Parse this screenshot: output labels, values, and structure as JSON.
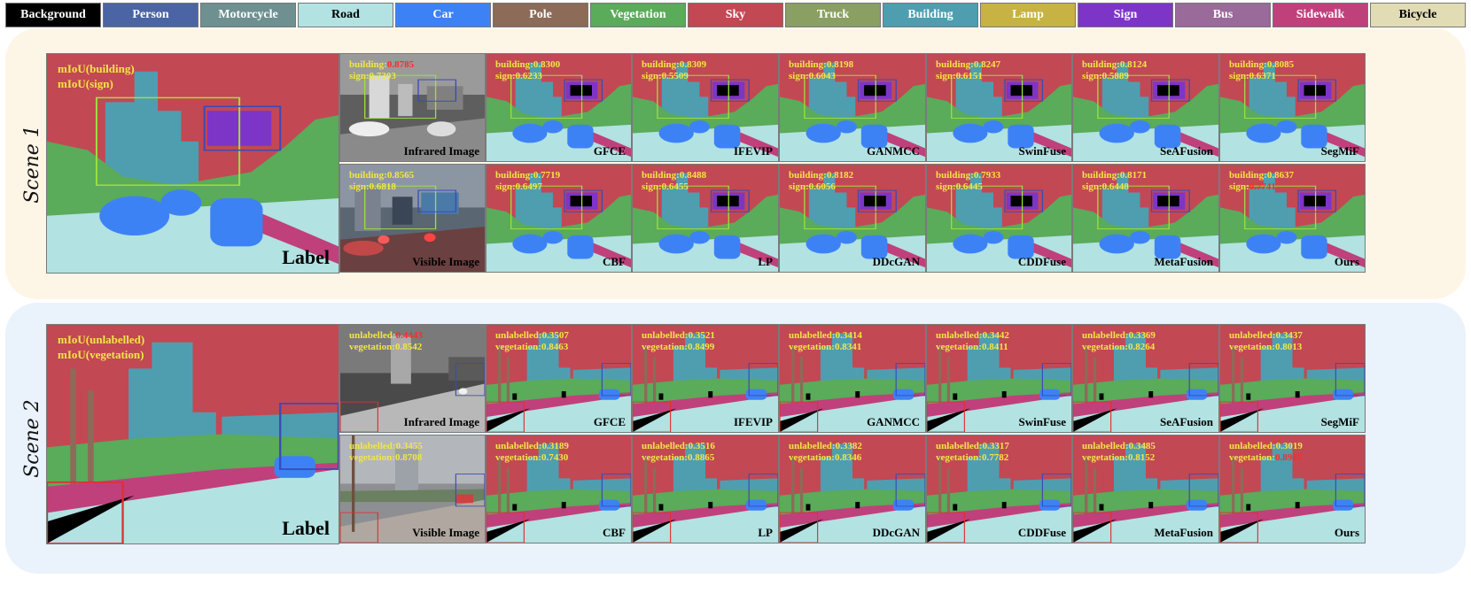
{
  "legend": [
    {
      "label": "Background",
      "color": "#000000"
    },
    {
      "label": "Person",
      "color": "#4a64a4"
    },
    {
      "label": "Motorcycle",
      "color": "#6e9090"
    },
    {
      "label": "Road",
      "color": "#b2e2e2"
    },
    {
      "label": "Car",
      "color": "#3d82f5"
    },
    {
      "label": "Pole",
      "color": "#8c6b58"
    },
    {
      "label": "Vegetation",
      "color": "#5aab5a"
    },
    {
      "label": "Sky",
      "color": "#c24854"
    },
    {
      "label": "Truck",
      "color": "#8aa062"
    },
    {
      "label": "Building",
      "color": "#4e9eb0"
    },
    {
      "label": "Lamp",
      "color": "#c7b244"
    },
    {
      "label": "Sign",
      "color": "#7d35c8"
    },
    {
      "label": "Bus",
      "color": "#9a6a9a"
    },
    {
      "label": "Sidewalk",
      "color": "#c0407c"
    },
    {
      "label": "Bicycle",
      "color": "#e2dcb4"
    }
  ],
  "scenes": [
    {
      "label": "Scene 1",
      "bg": "#fdf5e6",
      "label_panel": {
        "title": "Label",
        "metric_lines": [
          "mIoU(building)",
          "mIoU(sign)"
        ]
      },
      "infrared": {
        "title": "Infrared Image",
        "lines": [
          {
            "name": "building",
            "value": "0.8785",
            "best": true
          },
          {
            "name": "sign",
            "value": "0.7303",
            "best": false
          }
        ]
      },
      "visible": {
        "title": "Visible Image",
        "lines": [
          {
            "name": "building",
            "value": "0.8565",
            "best": false
          },
          {
            "name": "sign",
            "value": "0.6818",
            "best": false
          }
        ]
      },
      "methods_top": [
        {
          "name": "GFCE",
          "lines": [
            {
              "name": "building",
              "value": "0.8300"
            },
            {
              "name": "sign",
              "value": "0.6233"
            }
          ]
        },
        {
          "name": "IFEVIP",
          "lines": [
            {
              "name": "building",
              "value": "0.8309"
            },
            {
              "name": "sign",
              "value": "0.5509"
            }
          ]
        },
        {
          "name": "GANMCC",
          "lines": [
            {
              "name": "building",
              "value": "0.8198"
            },
            {
              "name": "sign",
              "value": "0.6043"
            }
          ]
        },
        {
          "name": "SwinFuse",
          "lines": [
            {
              "name": "building",
              "value": "0.8247"
            },
            {
              "name": "sign",
              "value": "0.6151"
            }
          ]
        },
        {
          "name": "SeAFusion",
          "lines": [
            {
              "name": "building",
              "value": "0.8124"
            },
            {
              "name": "sign",
              "value": "0.5889"
            }
          ]
        },
        {
          "name": "SegMiF",
          "lines": [
            {
              "name": "building",
              "value": "0.8085"
            },
            {
              "name": "sign",
              "value": "0.6371"
            }
          ]
        }
      ],
      "methods_bottom": [
        {
          "name": "CBF",
          "lines": [
            {
              "name": "building",
              "value": "0.7719"
            },
            {
              "name": "sign",
              "value": "0.6497"
            }
          ]
        },
        {
          "name": "LP",
          "lines": [
            {
              "name": "building",
              "value": "0.8488"
            },
            {
              "name": "sign",
              "value": "0.6455"
            }
          ]
        },
        {
          "name": "DDcGAN",
          "lines": [
            {
              "name": "building",
              "value": "0.8182"
            },
            {
              "name": "sign",
              "value": "0.6056"
            }
          ]
        },
        {
          "name": "CDDFuse",
          "lines": [
            {
              "name": "building",
              "value": "0.7933"
            },
            {
              "name": "sign",
              "value": "0.6445"
            }
          ]
        },
        {
          "name": "MetaFusion",
          "lines": [
            {
              "name": "building",
              "value": "0.8171"
            },
            {
              "name": "sign",
              "value": "0.6448"
            }
          ]
        },
        {
          "name": "Ours",
          "lines": [
            {
              "name": "building",
              "value": "0.8637"
            },
            {
              "name": "sign",
              "value": "0.7741",
              "best": true
            }
          ]
        }
      ]
    },
    {
      "label": "Scene 2",
      "bg": "#eaf2fb",
      "label_panel": {
        "title": "Label",
        "metric_lines": [
          "mIoU(unlabelled)",
          "mIoU(vegetation)"
        ]
      },
      "infrared": {
        "title": "Infrared Image",
        "lines": [
          {
            "name": "unlabelled",
            "value": "0.4443",
            "best": true
          },
          {
            "name": "vegetation",
            "value": "0.8542",
            "best": false
          }
        ]
      },
      "visible": {
        "title": "Visible Image",
        "lines": [
          {
            "name": "unlabelled",
            "value": "0.3455",
            "best": false
          },
          {
            "name": "vegetation",
            "value": "0.8708",
            "best": false
          }
        ]
      },
      "methods_top": [
        {
          "name": "GFCE",
          "lines": [
            {
              "name": "unlabelled",
              "value": "0.3507"
            },
            {
              "name": "vegetation",
              "value": "0.8463"
            }
          ]
        },
        {
          "name": "IFEVIP",
          "lines": [
            {
              "name": "unlabelled",
              "value": "0.3521"
            },
            {
              "name": "vegetation",
              "value": "0.8499"
            }
          ]
        },
        {
          "name": "GANMCC",
          "lines": [
            {
              "name": "unlabelled",
              "value": "0.3414"
            },
            {
              "name": "vegetation",
              "value": "0.8341"
            }
          ]
        },
        {
          "name": "SwinFuse",
          "lines": [
            {
              "name": "unlabelled",
              "value": "0.3442"
            },
            {
              "name": "vegetation",
              "value": "0.8411"
            }
          ]
        },
        {
          "name": "SeAFusion",
          "lines": [
            {
              "name": "unlabelled",
              "value": "0.3369"
            },
            {
              "name": "vegetation",
              "value": "0.8264"
            }
          ]
        },
        {
          "name": "SegMiF",
          "lines": [
            {
              "name": "unlabelled",
              "value": "0.3437"
            },
            {
              "name": "vegetation",
              "value": "0.8013"
            }
          ]
        }
      ],
      "methods_bottom": [
        {
          "name": "CBF",
          "lines": [
            {
              "name": "unlabelled",
              "value": "0.3189"
            },
            {
              "name": "vegetation",
              "value": "0.7430"
            }
          ]
        },
        {
          "name": "LP",
          "lines": [
            {
              "name": "unlabelled",
              "value": "0.3516"
            },
            {
              "name": "vegetation",
              "value": "0.8865"
            }
          ]
        },
        {
          "name": "DDcGAN",
          "lines": [
            {
              "name": "unlabelled",
              "value": "0.3382"
            },
            {
              "name": "vegetation",
              "value": "0.8346"
            }
          ]
        },
        {
          "name": "CDDFuse",
          "lines": [
            {
              "name": "unlabelled",
              "value": "0.3317"
            },
            {
              "name": "vegetation",
              "value": "0.7782"
            }
          ]
        },
        {
          "name": "MetaFusion",
          "lines": [
            {
              "name": "unlabelled",
              "value": "0.3485"
            },
            {
              "name": "vegetation",
              "value": "0.8152"
            }
          ]
        },
        {
          "name": "Ours",
          "lines": [
            {
              "name": "unlabelled",
              "value": "0.3019"
            },
            {
              "name": "vegetation",
              "value": "0.8965",
              "best": true
            }
          ]
        }
      ]
    }
  ]
}
